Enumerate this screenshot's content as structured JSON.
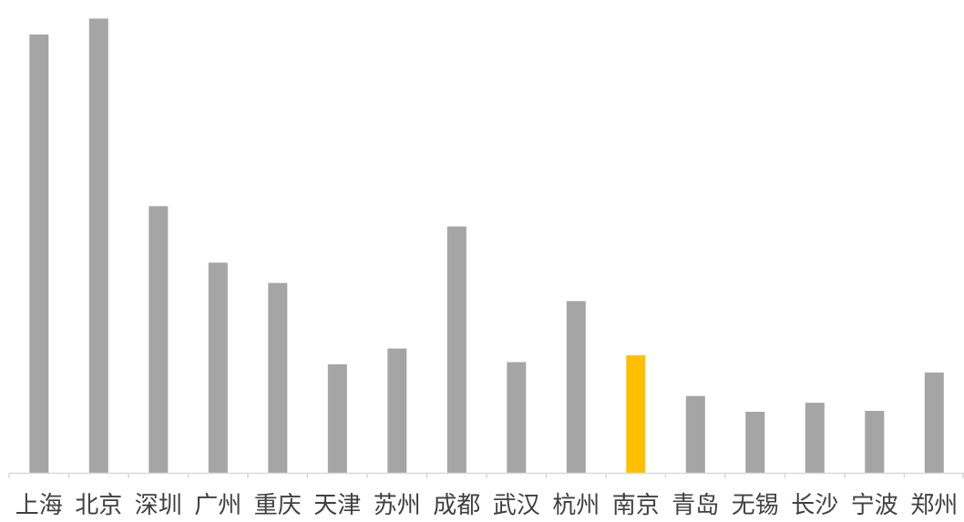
{
  "chart_data": {
    "type": "bar",
    "categories": [
      "上海",
      "北京",
      "深圳",
      "广州",
      "重庆",
      "天津",
      "苏州",
      "成都",
      "武汉",
      "杭州",
      "南京",
      "青岛",
      "无锡",
      "长沙",
      "宁波",
      "郑州"
    ],
    "values": [
      97,
      100.5,
      59,
      46.5,
      42,
      24,
      27.5,
      54.5,
      24.5,
      38,
      26,
      17,
      13.5,
      15.5,
      13.7,
      22.2
    ],
    "ylim": [
      0,
      103
    ],
    "title": "",
    "xlabel": "",
    "ylabel": "",
    "grid": false,
    "legend": "none",
    "highlight_category": "南京",
    "colors": {
      "bar": "#a5a5a5",
      "highlight": "#ffc000",
      "axis": "#d9d9d9",
      "label": "#404040"
    }
  }
}
